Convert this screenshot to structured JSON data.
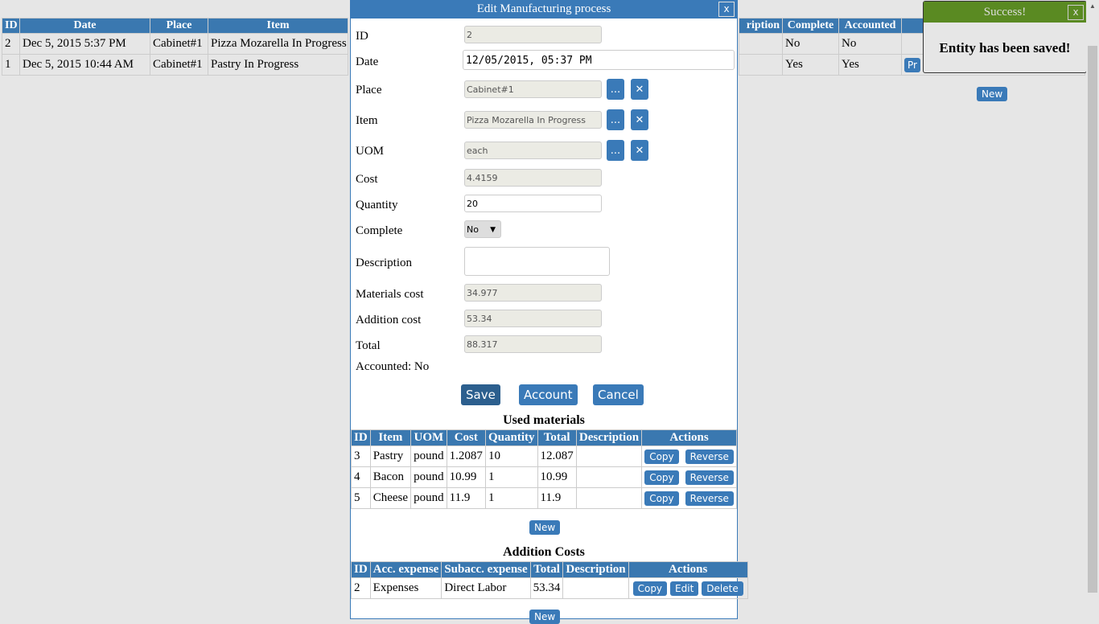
{
  "background_table": {
    "headers_left": [
      "ID",
      "Date",
      "Place",
      "Item"
    ],
    "headers_right": [
      "ription",
      "Complete",
      "Accounted",
      ""
    ],
    "rows": [
      {
        "id": "2",
        "date": "Dec 5, 2015 5:37 PM",
        "place": "Cabinet#1",
        "item": "Pizza Mozarella In Progress",
        "complete": "No",
        "accounted": "No",
        "action": ""
      },
      {
        "id": "1",
        "date": "Dec 5, 2015 10:44 AM",
        "place": "Cabinet#1",
        "item": "Pastry In Progress",
        "complete": "Yes",
        "accounted": "Yes",
        "action": "Pr"
      }
    ],
    "new_label": "New"
  },
  "modal": {
    "title": "Edit Manufacturing process",
    "close_label": "x",
    "fields": {
      "id": {
        "label": "ID",
        "value": "2"
      },
      "date": {
        "label": "Date",
        "value": "12/05/2015, 05:37 PM"
      },
      "place": {
        "label": "Place",
        "value": "Cabinet#1"
      },
      "item": {
        "label": "Item",
        "value": "Pizza Mozarella In Progress"
      },
      "uom": {
        "label": "UOM",
        "value": "each"
      },
      "cost": {
        "label": "Cost",
        "value": "4.4159"
      },
      "quantity": {
        "label": "Quantity",
        "value": "20"
      },
      "complete": {
        "label": "Complete",
        "value": "No"
      },
      "description": {
        "label": "Description",
        "value": ""
      },
      "materials_cost": {
        "label": "Materials cost",
        "value": "34.977"
      },
      "addition_cost": {
        "label": "Addition cost",
        "value": "53.34"
      },
      "total": {
        "label": "Total",
        "value": "88.317"
      }
    },
    "accounted_text": "Accounted: No",
    "browse_label": "...",
    "clear_label": "✕",
    "save_label": "Save",
    "account_label": "Account",
    "cancel_label": "Cancel",
    "used_materials": {
      "title": "Used materials",
      "headers": [
        "ID",
        "Item",
        "UOM",
        "Cost",
        "Quantity",
        "Total",
        "Description",
        "Actions"
      ],
      "rows": [
        {
          "id": "3",
          "item": "Pastry",
          "uom": "pound",
          "cost": "1.2087",
          "quantity": "10",
          "total": "12.087",
          "description": ""
        },
        {
          "id": "4",
          "item": "Bacon",
          "uom": "pound",
          "cost": "10.99",
          "quantity": "1",
          "total": "10.99",
          "description": ""
        },
        {
          "id": "5",
          "item": "Cheese",
          "uom": "pound",
          "cost": "11.9",
          "quantity": "1",
          "total": "11.9",
          "description": ""
        }
      ],
      "copy_label": "Copy",
      "reverse_label": "Reverse",
      "new_label": "New"
    },
    "addition_costs": {
      "title": "Addition Costs",
      "headers": [
        "ID",
        "Acc. expense",
        "Subacc. expense",
        "Total",
        "Description",
        "Actions"
      ],
      "rows": [
        {
          "id": "2",
          "acc": "Expenses",
          "subacc": "Direct Labor",
          "total": "53.34",
          "description": ""
        }
      ],
      "copy_label": "Copy",
      "edit_label": "Edit",
      "delete_label": "Delete",
      "new_label": "New"
    }
  },
  "toast": {
    "title": "Success!",
    "close_label": "x",
    "message": "Entity has been saved!"
  },
  "colors": {
    "header": "#3a78b0",
    "toast_header": "#5a8a22"
  }
}
